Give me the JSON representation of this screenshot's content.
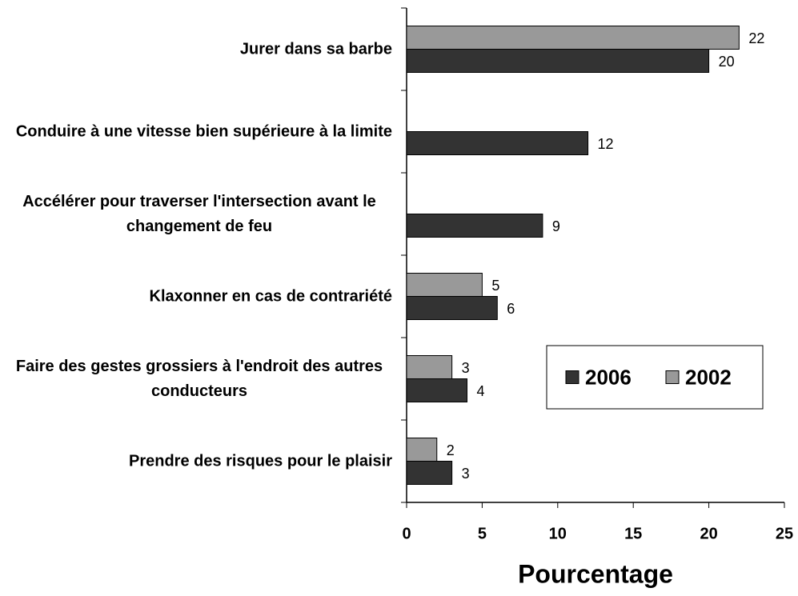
{
  "chart_data": {
    "type": "barh",
    "categories": [
      "Jurer dans sa barbe",
      "Conduire à une vitesse bien supérieure à la limite",
      "Accélérer pour traverser l'intersection avant le changement de feu",
      "Klaxonner en cas de contrariété",
      "Faire des gestes grossiers à l'endroit des autres conducteurs",
      "Prendre des risques pour le plaisir"
    ],
    "series": [
      {
        "name": "2006",
        "color": "#333333",
        "values": [
          20,
          12,
          9,
          6,
          4,
          3
        ]
      },
      {
        "name": "2002",
        "color": "#999999",
        "values": [
          22,
          null,
          null,
          5,
          3,
          2
        ]
      }
    ],
    "xlabel": "Pourcentage",
    "xlim": [
      0,
      25
    ],
    "xticks": [
      0,
      5,
      10,
      15,
      20,
      25
    ],
    "legend": "lower right"
  }
}
